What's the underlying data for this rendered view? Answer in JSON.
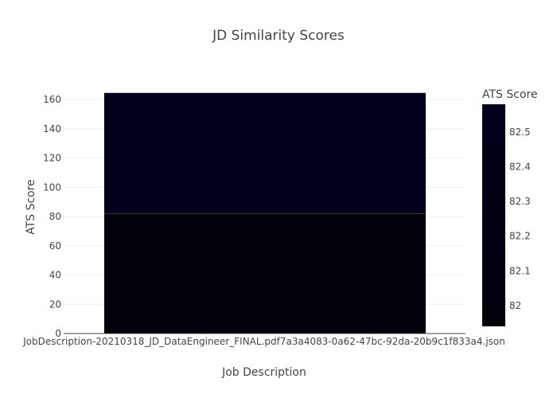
{
  "chart_data": {
    "type": "bar",
    "title": "JD Similarity Scores",
    "xlabel": "Job Description",
    "ylabel": "ATS Score",
    "categories": [
      "JobDescription-20210318_JD_DataEngineer_FINAL.pdf7a3a4083-0a62-47bc-92da-20b9c1f833a4.json"
    ],
    "series": [
      {
        "values": [
          82.0
        ],
        "color": "#03000a"
      },
      {
        "values": [
          82.6
        ],
        "color": "#00001d"
      }
    ],
    "ylim": [
      0,
      165
    ],
    "yticks": [
      0,
      20,
      40,
      60,
      80,
      100,
      120,
      140,
      160
    ],
    "grid": true,
    "colorbar": {
      "title": "ATS Score",
      "range": [
        81.94,
        82.58
      ],
      "ticks": [
        82,
        82.1,
        82.2,
        82.3,
        82.4,
        82.5
      ],
      "tick_labels": [
        "82",
        "82.1",
        "82.2",
        "82.3",
        "82.4",
        "82.5"
      ],
      "colors": [
        "#03000a",
        "#00001d"
      ]
    }
  }
}
